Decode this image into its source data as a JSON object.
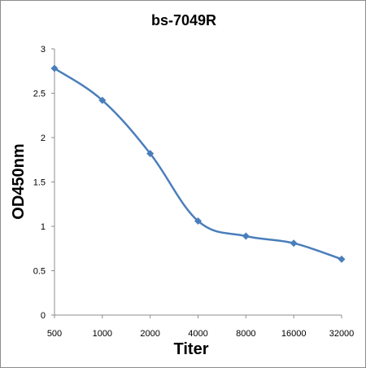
{
  "chart_data": {
    "type": "line",
    "title": "bs-7049R",
    "xlabel": "Titer",
    "ylabel": "OD450nm",
    "categories": [
      "500",
      "1000",
      "2000",
      "4000",
      "8000",
      "16000",
      "32000"
    ],
    "series": [
      {
        "values": [
          2.78,
          2.42,
          1.82,
          1.06,
          0.89,
          0.81,
          0.63
        ]
      }
    ],
    "ylim": [
      0,
      3
    ],
    "yticks": [
      "0",
      "0.5",
      "1",
      "1.5",
      "2",
      "2.5",
      "3"
    ],
    "grid": false,
    "legend": "none",
    "line_color": "#4a7ebb",
    "marker": "diamond"
  }
}
